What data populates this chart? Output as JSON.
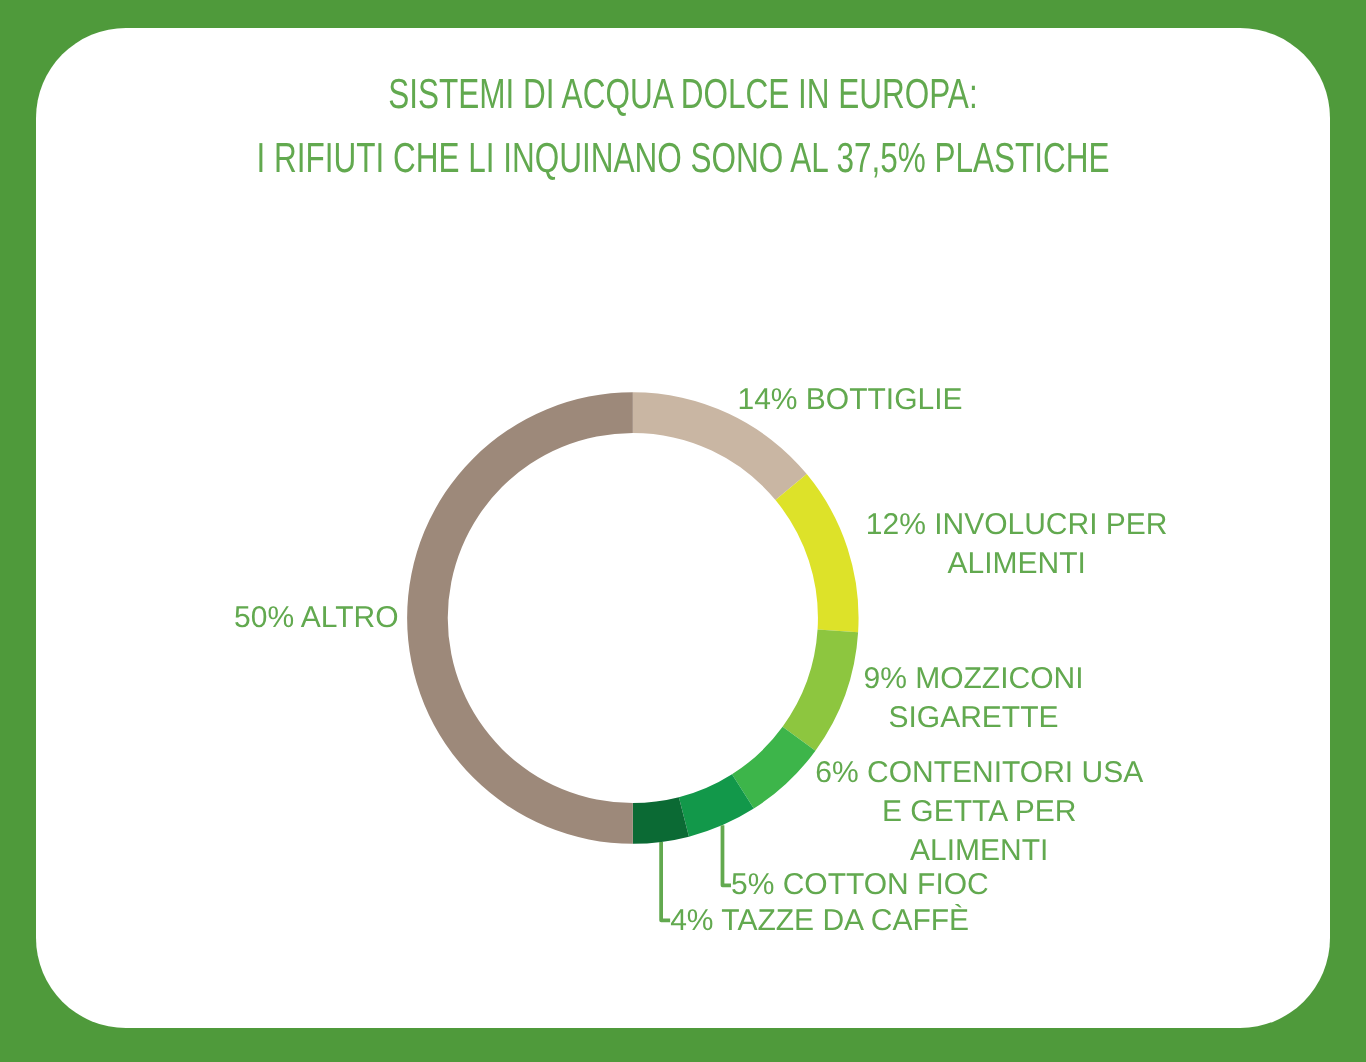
{
  "chart_data": {
    "type": "donut",
    "title": "SISTEMI DI ACQUA DOLCE IN EUROPA:",
    "subtitle": "I RIFIUTI CHE LI INQUINANO SONO AL 37,5% PLASTICHE",
    "categories": [
      "BOTTIGLIE",
      "INVOLUCRI PER ALIMENTI",
      "MOZZICONI SIGARETTE",
      "CONTENITORI USA E GETTA PER ALIMENTI",
      "COTTON FIOC",
      "TAZZE DA CAFFÈ",
      "ALTRO"
    ],
    "values": [
      14,
      12,
      9,
      6,
      5,
      4,
      50
    ],
    "value_labels": [
      "14%",
      "12%",
      "9%",
      "6%",
      "5%",
      "4%",
      "50%"
    ],
    "colors": [
      "#c9b6a3",
      "#dde229",
      "#8dc63f",
      "#3db54a",
      "#12984a",
      "#0b6a34",
      "#9d897a"
    ],
    "legend": false
  }
}
